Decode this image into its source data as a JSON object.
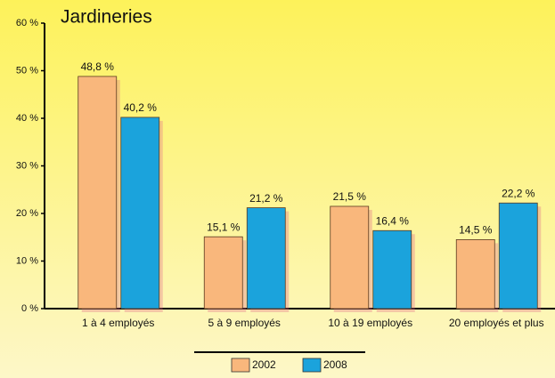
{
  "chart_data": {
    "type": "bar",
    "title": "Jardineries",
    "categories": [
      "1 à 4 employés",
      "5 à 9 employés",
      "10 à 19 employés",
      "20 employés et plus"
    ],
    "series": [
      {
        "name": "2002",
        "color": "#f9b77c",
        "values": [
          48.8,
          15.1,
          21.5,
          14.5
        ],
        "value_labels": [
          "48,8 %",
          "15,1 %",
          "21,5 %",
          "14,5 %"
        ]
      },
      {
        "name": "2008",
        "color": "#1ba3dc",
        "values": [
          40.2,
          21.2,
          16.4,
          22.2
        ],
        "value_labels": [
          "40,2 %",
          "21,2 %",
          "16,4 %",
          "22,2 %"
        ]
      }
    ],
    "ylim": [
      0,
      60
    ],
    "yticks": [
      {
        "value": 0,
        "label": "0 %"
      },
      {
        "value": 10,
        "label": "10 %"
      },
      {
        "value": 20,
        "label": "20 %"
      },
      {
        "value": 30,
        "label": "30 %"
      },
      {
        "value": 40,
        "label": "40 %"
      },
      {
        "value": 50,
        "label": "50 %"
      },
      {
        "value": 60,
        "label": "60 %"
      }
    ],
    "legend": "bottom"
  }
}
